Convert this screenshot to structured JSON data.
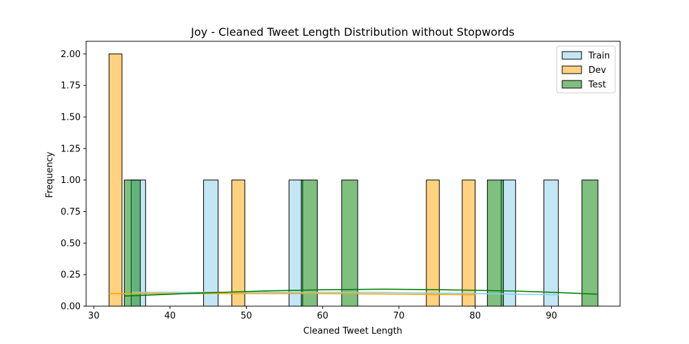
{
  "chart_data": {
    "type": "histogram",
    "title": "Joy - Cleaned Tweet Length Distribution without Stopwords",
    "xlabel": "Cleaned Tweet Length",
    "ylabel": "Frequency",
    "xlim": [
      29,
      99
    ],
    "ylim": [
      0,
      2.1
    ],
    "xticks": [
      30,
      40,
      50,
      60,
      70,
      80,
      90
    ],
    "yticks": [
      "0.00",
      "0.25",
      "0.50",
      "0.75",
      "1.00",
      "1.25",
      "1.50",
      "1.75",
      "2.00"
    ],
    "legend_position": "top-right",
    "series": [
      {
        "name": "Train",
        "color": "#87CEEB",
        "bins": [
          {
            "x0": 34.9,
            "x1": 36.8,
            "count": 1
          },
          {
            "x0": 44.4,
            "x1": 46.3,
            "count": 1
          },
          {
            "x0": 55.6,
            "x1": 57.4,
            "count": 1
          },
          {
            "x0": 83.4,
            "x1": 85.3,
            "count": 1
          },
          {
            "x0": 89.0,
            "x1": 90.9,
            "count": 1
          }
        ],
        "kde": [
          [
            35,
            0.11
          ],
          [
            50,
            0.11
          ],
          [
            65,
            0.11
          ],
          [
            80,
            0.1
          ],
          [
            91,
            0.09
          ]
        ]
      },
      {
        "name": "Dev",
        "color": "#FFA500",
        "bins": [
          {
            "x0": 32.0,
            "x1": 33.7,
            "count": 2
          },
          {
            "x0": 48.1,
            "x1": 49.8,
            "count": 1
          },
          {
            "x0": 73.6,
            "x1": 75.3,
            "count": 1
          },
          {
            "x0": 78.3,
            "x1": 80.0,
            "count": 1
          }
        ],
        "kde": [
          [
            32,
            0.1
          ],
          [
            45,
            0.1
          ],
          [
            60,
            0.1
          ],
          [
            70,
            0.095
          ],
          [
            80,
            0.09
          ]
        ]
      },
      {
        "name": "Test",
        "color": "#008000",
        "bins": [
          {
            "x0": 34.0,
            "x1": 36.1,
            "count": 1
          },
          {
            "x0": 57.2,
            "x1": 59.3,
            "count": 1
          },
          {
            "x0": 62.5,
            "x1": 64.6,
            "count": 1
          },
          {
            "x0": 81.6,
            "x1": 83.7,
            "count": 1
          },
          {
            "x0": 94.0,
            "x1": 96.1,
            "count": 1
          }
        ],
        "kde": [
          [
            34,
            0.08
          ],
          [
            42,
            0.1
          ],
          [
            52,
            0.12
          ],
          [
            60,
            0.13
          ],
          [
            68,
            0.135
          ],
          [
            76,
            0.13
          ],
          [
            85,
            0.12
          ],
          [
            90,
            0.11
          ],
          [
            96,
            0.095
          ]
        ]
      }
    ]
  }
}
